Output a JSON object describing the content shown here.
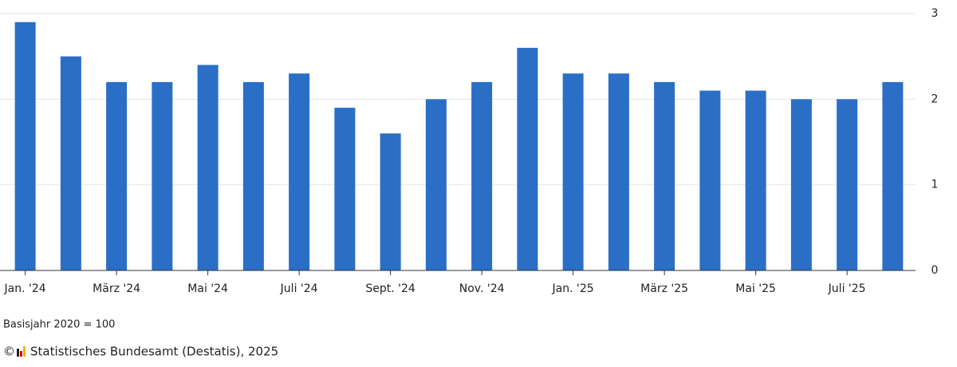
{
  "chart_data": {
    "type": "bar",
    "categories": [
      "Jan. '24",
      null,
      "März '24",
      null,
      "Mai '24",
      null,
      "Juli '24",
      null,
      "Sept. '24",
      null,
      "Nov. '24",
      null,
      "Jan. '25",
      null,
      "März '25",
      null,
      "Mai '25",
      null,
      "Juli '25",
      null
    ],
    "values": [
      2.9,
      2.5,
      2.2,
      2.2,
      2.4,
      2.2,
      2.3,
      1.9,
      1.6,
      2.0,
      2.2,
      2.6,
      2.3,
      2.3,
      2.2,
      2.1,
      2.1,
      2.0,
      2.0,
      2.2
    ],
    "color": "#2a6ec6",
    "ylim": [
      0,
      3
    ],
    "yticks": [
      0,
      1,
      2,
      3
    ],
    "grid": true,
    "note": "Basisjahr 2020 = 100",
    "copyright": "©",
    "source": "Statistisches Bundesamt (Destatis), 2025"
  }
}
